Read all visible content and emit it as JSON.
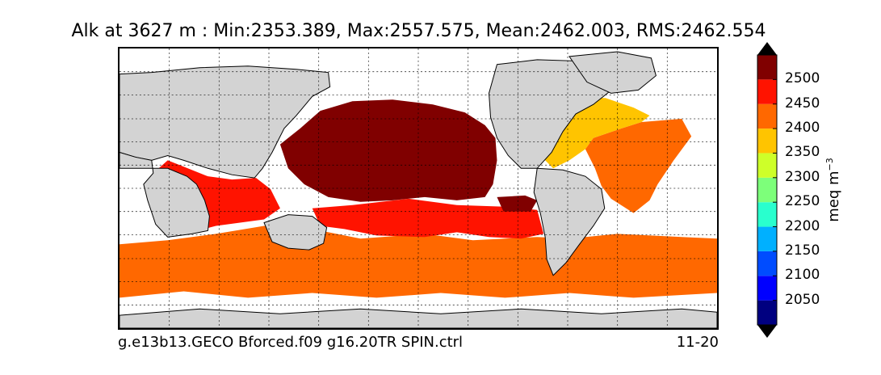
{
  "title": "Alk at 3627 m : Min:2353.389, Max:2557.575, Mean:2462.003, RMS:2462.554",
  "footer": {
    "run_name": "g.e13b13.GECO Bforced.f09 g16.20TR SPIN.ctrl",
    "period": "11-20"
  },
  "colorbar": {
    "unit_base": "meq m",
    "unit_exp": "−3",
    "ticks": [
      "2500",
      "2450",
      "2400",
      "2350",
      "2300",
      "2250",
      "2200",
      "2150",
      "2100",
      "2050"
    ],
    "levels": [
      2000,
      2050,
      2100,
      2150,
      2200,
      2250,
      2300,
      2350,
      2400,
      2450,
      2500,
      2550
    ],
    "colors": [
      "#000080",
      "#0000ff",
      "#004cff",
      "#00b0ff",
      "#29ffce",
      "#7dff7a",
      "#ceff29",
      "#ffc400",
      "#ff6800",
      "#ff1300",
      "#800000"
    ],
    "extend": "both"
  },
  "map": {
    "projection": "cylindrical",
    "land_color": "#d3d3d3",
    "nodata_color": "#ffffff",
    "grid": true
  }
}
